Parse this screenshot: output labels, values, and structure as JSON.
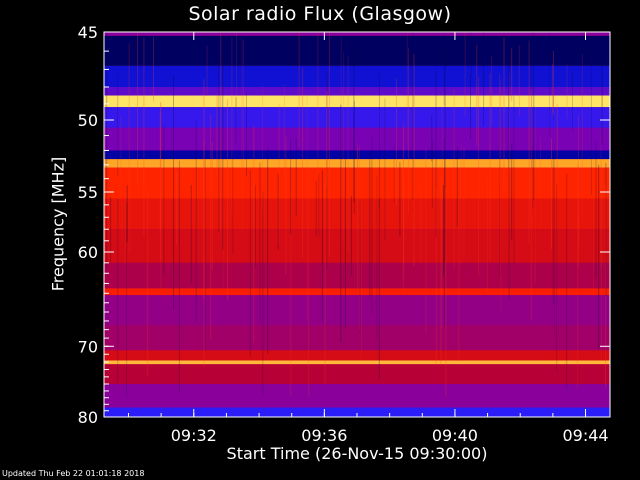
{
  "chart_data": {
    "type": "heatmap",
    "title": "Solar radio Flux (Glasgow)",
    "xlabel": "Start Time (26-Nov-15 09:30:00)",
    "ylabel": "Frequency [MHz]",
    "x_tick_labels": [
      "09:32",
      "09:36",
      "09:40",
      "09:44"
    ],
    "x_ticks_minutes_after_start": [
      2,
      6,
      10,
      14
    ],
    "x_range_minutes_after_start": [
      -0.75,
      14.75
    ],
    "y_tick_labels": [
      "45",
      "50",
      "55",
      "60",
      "70",
      "80"
    ],
    "y_ticks_mhz": [
      45,
      50,
      55,
      60,
      70,
      80
    ],
    "y_range_mhz": [
      45,
      80
    ],
    "y_scale": "reciprocal",
    "y_direction": "increasing downward",
    "colormap": [
      "#000010",
      "#0000a0",
      "#2020ff",
      "#8000b0",
      "#c00020",
      "#ff2000",
      "#ff8000",
      "#ffff80"
    ],
    "intensity_range": [
      0,
      1
    ],
    "frequency_bands": [
      {
        "freq": [
          45.0,
          45.2
        ],
        "level": 0.45
      },
      {
        "freq": [
          45.2,
          46.8
        ],
        "level": 0.08
      },
      {
        "freq": [
          46.8,
          48.0
        ],
        "level": 0.22
      },
      {
        "freq": [
          48.0,
          48.5
        ],
        "level": 0.38
      },
      {
        "freq": [
          48.5,
          49.2
        ],
        "level": 0.97
      },
      {
        "freq": [
          49.2,
          50.5
        ],
        "level": 0.32
      },
      {
        "freq": [
          50.5,
          52.0
        ],
        "level": 0.42
      },
      {
        "freq": [
          52.0,
          52.6
        ],
        "level": 0.15
      },
      {
        "freq": [
          52.6,
          53.2
        ],
        "level": 0.9
      },
      {
        "freq": [
          53.2,
          55.5
        ],
        "level": 0.72
      },
      {
        "freq": [
          55.5,
          58.0
        ],
        "level": 0.66
      },
      {
        "freq": [
          58.0,
          61.0
        ],
        "level": 0.62
      },
      {
        "freq": [
          61.0,
          63.5
        ],
        "level": 0.53
      },
      {
        "freq": [
          63.5,
          64.2
        ],
        "level": 0.7
      },
      {
        "freq": [
          64.2,
          67.5
        ],
        "level": 0.47
      },
      {
        "freq": [
          67.5,
          70.5
        ],
        "level": 0.5
      },
      {
        "freq": [
          70.5,
          71.8
        ],
        "level": 0.62
      },
      {
        "freq": [
          71.8,
          72.3
        ],
        "level": 0.92
      },
      {
        "freq": [
          72.3,
          75.0
        ],
        "level": 0.55
      },
      {
        "freq": [
          75.0,
          78.5
        ],
        "level": 0.45
      },
      {
        "freq": [
          78.5,
          80.0
        ],
        "level": 0.3
      }
    ],
    "background_level": 0.5
  },
  "footer": {
    "updated_text": "Updated Thu Feb 22 01:01:18 2018"
  },
  "colors": {
    "background": "#000000",
    "axis_text": "#ffffff",
    "frame": "#ffffff"
  }
}
